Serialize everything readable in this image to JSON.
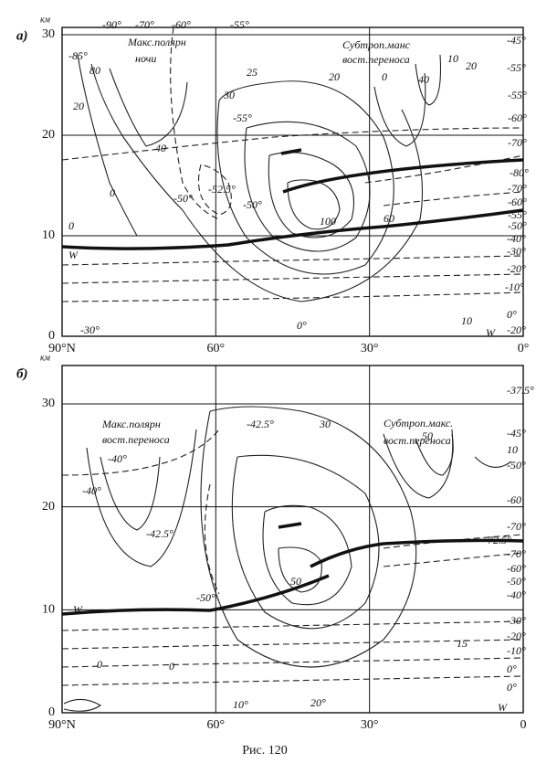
{
  "figure": {
    "caption": "Рис. 120",
    "panels": [
      {
        "label": "а)",
        "unit": "км",
        "yticks": [
          0,
          10,
          20,
          30
        ],
        "xticks": [
          "90°N",
          "60°",
          "30°",
          "0°"
        ],
        "labels": [
          "-90°",
          "-70°",
          "-60°",
          "-55°",
          "-85°",
          "Макс.полярн",
          "ночи",
          "80",
          "20",
          "40",
          "0",
          "Субтроп.манс",
          "вост.переноса",
          "25",
          "30",
          "-55°",
          "20",
          "0",
          "40",
          "10",
          "20",
          "-45°",
          "-55°",
          "-55°",
          "-60°",
          "-70°",
          "-80°",
          "-70°",
          "-60°",
          "-55°",
          "-50°",
          "-40°",
          "-30°",
          "-20°",
          "-10°",
          "0°",
          "-20°",
          "-52.5°",
          "-50°",
          "-50°",
          "100",
          "60",
          "0",
          "W",
          "0°",
          "10",
          "W",
          "-30°"
        ]
      },
      {
        "label": "б)",
        "unit": "км",
        "yticks": [
          0,
          10,
          20,
          30
        ],
        "xticks": [
          "90°N",
          "60°",
          "30°",
          "0"
        ],
        "labels": [
          "-37.5°",
          "Макс.полярн",
          "вост.переноса",
          "Субтроп.макс.",
          "вост.переноса",
          "-42.5°",
          "30",
          "50",
          "-45°",
          "10",
          "-50°",
          "-40°",
          "-40°",
          "-60",
          "-42.5°",
          "-70°",
          "-72.5°",
          "-70°",
          "-60°",
          "-50°",
          "-40°",
          "50",
          "-50°",
          "W",
          "-30°",
          "-20°",
          "-10°",
          "0°",
          "15",
          "0",
          "0",
          "10°",
          "20°",
          "W",
          "0°"
        ]
      }
    ]
  }
}
